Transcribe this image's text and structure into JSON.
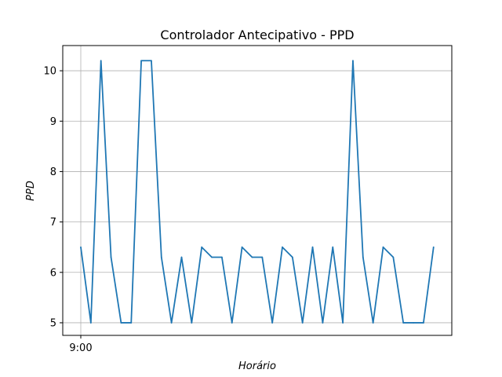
{
  "chart_data": {
    "type": "line",
    "title": "Controlador Antecipativo - PPD",
    "xlabel": "Horário",
    "ylabel": "PPD",
    "x_tick_labels": [
      {
        "index": 0,
        "label": "9:00"
      }
    ],
    "x_count": 36,
    "ylim": [
      4.75,
      10.5
    ],
    "yticks": [
      5,
      6,
      7,
      8,
      9,
      10
    ],
    "grid": true,
    "series": [
      {
        "color": "#1f77b4",
        "values": [
          6.5,
          5.0,
          10.2,
          6.3,
          5.0,
          5.0,
          10.2,
          10.2,
          6.3,
          5.0,
          6.3,
          5.0,
          6.5,
          6.3,
          6.3,
          5.0,
          6.5,
          6.3,
          6.3,
          5.0,
          6.5,
          6.3,
          5.0,
          6.5,
          5.0,
          6.5,
          5.0,
          10.2,
          6.3,
          5.0,
          6.5,
          6.3,
          5.0,
          5.0,
          5.0,
          6.5
        ]
      }
    ]
  }
}
